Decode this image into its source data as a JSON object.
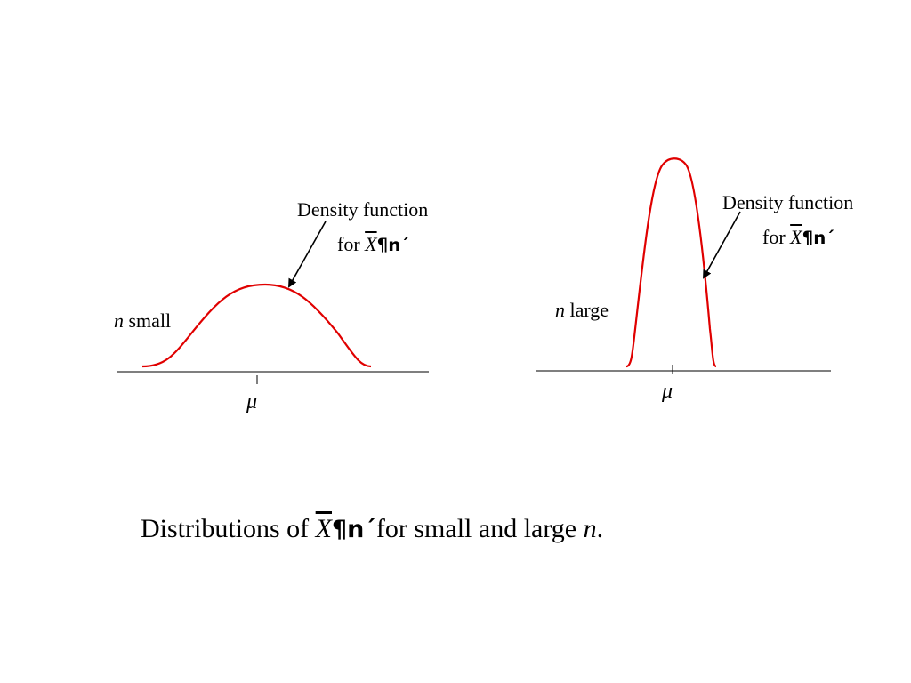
{
  "left_panel": {
    "annotation_line1": "Density function",
    "annotation_for": "for",
    "annotation_symbol": "X",
    "annotation_garble": "¶n´",
    "n_var": "n",
    "n_text": "small",
    "mean_label": "μ"
  },
  "right_panel": {
    "annotation_line1": "Density function",
    "annotation_for": "for",
    "annotation_symbol": "X",
    "annotation_garble": "¶n´",
    "n_var": "n",
    "n_text": "large",
    "mean_label": "μ"
  },
  "caption": {
    "prefix": "Distributions of ",
    "symbol": "X",
    "garble": "¶n´",
    "middle": "for small and large ",
    "n_var": "n",
    "suffix": "."
  },
  "colors": {
    "curve": "#e00000",
    "axis": "#555555",
    "arrow": "#000000"
  }
}
